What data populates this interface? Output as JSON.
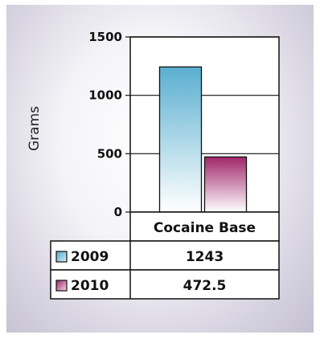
{
  "chart_data": {
    "type": "bar",
    "title": "",
    "xlabel": "",
    "ylabel": "Grams",
    "ylim": [
      0,
      1500
    ],
    "yticks": [
      0,
      500,
      1000,
      1500
    ],
    "grid": true,
    "categories": [
      "Cocaine Base"
    ],
    "series": [
      {
        "name": "2009",
        "values": [
          1243
        ],
        "display_value": "1243",
        "color": "#6fbcd6"
      },
      {
        "name": "2010",
        "values": [
          472.5
        ],
        "display_value": "472.5",
        "color": "#a8306e"
      }
    ],
    "legend_placement": "data-table-below"
  }
}
